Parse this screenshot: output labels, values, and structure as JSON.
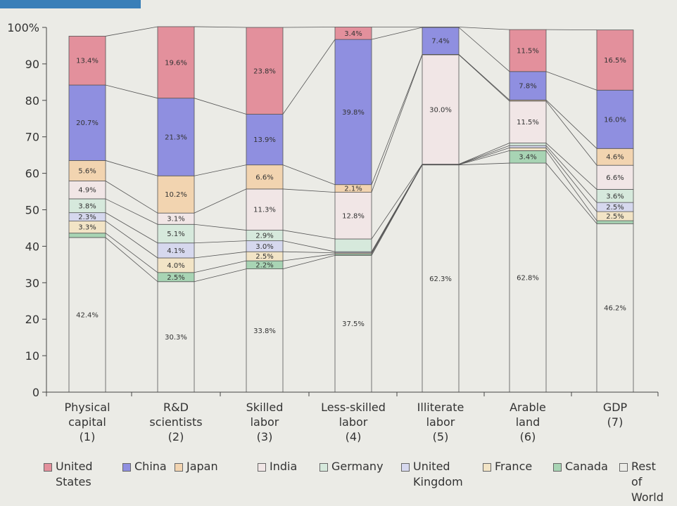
{
  "chart_data": {
    "type": "bar",
    "stacked": true,
    "categories": [
      [
        "Physical",
        "capital",
        "(1)"
      ],
      [
        "R&D",
        "scientists",
        "(2)"
      ],
      [
        "Skilled",
        "labor",
        "(3)"
      ],
      [
        "Less-skilled",
        "labor",
        "(4)"
      ],
      [
        "Illiterate",
        "labor",
        "(5)"
      ],
      [
        "Arable",
        "land",
        "(6)"
      ],
      [
        "GDP",
        "(7)"
      ]
    ],
    "y_ticks": [
      "0",
      "10",
      "20",
      "30",
      "40",
      "50",
      "60",
      "70",
      "80",
      "90",
      "100%"
    ],
    "ylim": [
      0,
      100
    ],
    "grid": false,
    "legend_position": "bottom",
    "series": [
      {
        "name": [
          "Rest of",
          "World"
        ],
        "color": "#ebebe6",
        "values": [
          42.4,
          30.3,
          33.8,
          37.5,
          62.3,
          62.8,
          46.2
        ],
        "labels": [
          "42.4%",
          "30.3%",
          "33.8%",
          "37.5%",
          "62.3%",
          "62.8%",
          "46.2%"
        ]
      },
      {
        "name": [
          "Canada"
        ],
        "color": "#a8d4b4",
        "values": [
          1.2,
          2.5,
          2.2,
          0.4,
          0.05,
          3.4,
          0.8
        ],
        "labels": [
          "",
          "2.5%",
          "2.2%",
          "",
          "",
          "3.4%",
          ""
        ]
      },
      {
        "name": [
          "France"
        ],
        "color": "#f2e4c6",
        "values": [
          3.3,
          4.0,
          2.5,
          0.3,
          0.05,
          0.8,
          2.5
        ],
        "labels": [
          "3.3%",
          "4.0%",
          "2.5%",
          "",
          "",
          "",
          "2.5%"
        ]
      },
      {
        "name": [
          "United",
          "Kingdom"
        ],
        "color": "#d6d8ee",
        "values": [
          2.3,
          4.1,
          3.0,
          0.3,
          0.05,
          0.6,
          2.5
        ],
        "labels": [
          "2.3%",
          "4.1%",
          "3.0%",
          "",
          "",
          "",
          "2.5%"
        ]
      },
      {
        "name": [
          "Germany"
        ],
        "color": "#d6e9dc",
        "values": [
          3.8,
          5.1,
          2.9,
          3.5,
          0.05,
          0.7,
          3.6
        ],
        "labels": [
          "3.8%",
          "5.1%",
          "2.9%",
          "",
          "",
          "",
          "3.6%"
        ]
      },
      {
        "name": [
          "India"
        ],
        "color": "#f1e6e6",
        "values": [
          4.9,
          3.1,
          11.3,
          12.8,
          30.0,
          11.5,
          6.6
        ],
        "labels": [
          "4.9%",
          "3.1%",
          "11.3%",
          "12.8%",
          "30.0%",
          "11.5%",
          "6.6%"
        ]
      },
      {
        "name": [
          "Japan"
        ],
        "color": "#f2d4b0",
        "values": [
          5.6,
          10.2,
          6.6,
          2.1,
          0.1,
          0.3,
          4.6
        ],
        "labels": [
          "5.6%",
          "10.2%",
          "6.6%",
          "2.1%",
          "",
          "",
          "4.6%"
        ]
      },
      {
        "name": [
          "China"
        ],
        "color": "#8f8fe0",
        "values": [
          20.7,
          21.3,
          13.9,
          39.8,
          7.4,
          7.8,
          16.0
        ],
        "labels": [
          "20.7%",
          "21.3%",
          "13.9%",
          "39.8%",
          "7.4%",
          "7.8%",
          "16.0%"
        ]
      },
      {
        "name": [
          "United",
          "States"
        ],
        "color": "#e3909c",
        "values": [
          13.4,
          19.6,
          23.8,
          3.4,
          0.1,
          11.5,
          16.5
        ],
        "labels": [
          "13.4%",
          "19.6%",
          "23.8%",
          "3.4%",
          "",
          "11.5%",
          "16.5%"
        ]
      }
    ]
  },
  "legend_order": [
    8,
    7,
    6,
    5,
    4,
    3,
    2,
    1,
    0
  ]
}
